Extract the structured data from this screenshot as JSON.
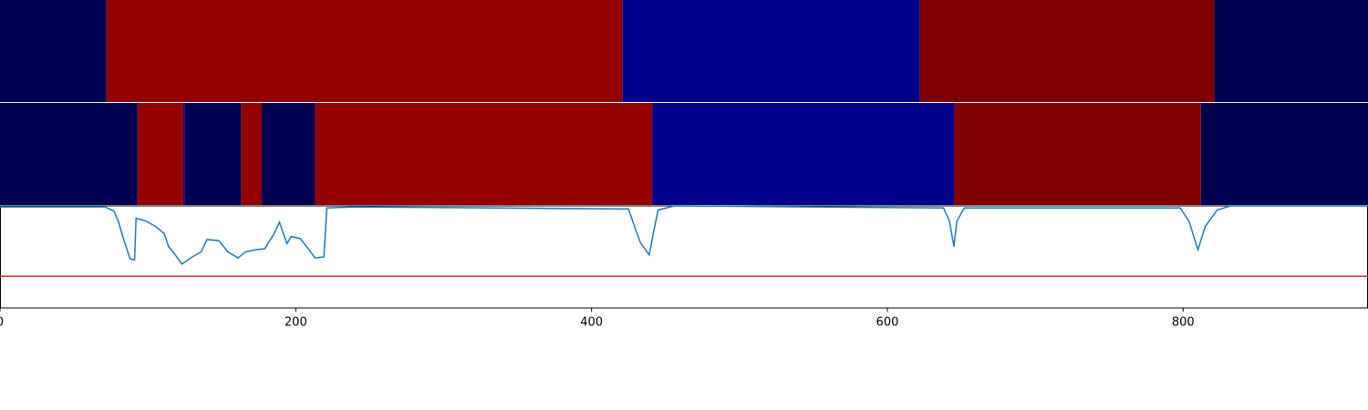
{
  "chart_data": {
    "type": "line",
    "xlim": [
      0,
      925
    ],
    "xticks": [
      0,
      200,
      400,
      600,
      800
    ],
    "ylim": [
      0,
      1
    ],
    "tracks": [
      {
        "segments": [
          {
            "start": 0,
            "end": 72,
            "color": "#000050"
          },
          {
            "start": 72,
            "end": 421,
            "color": "#920000"
          },
          {
            "start": 421,
            "end": 622,
            "color": "#00008a"
          },
          {
            "start": 622,
            "end": 821,
            "color": "#7f0000"
          },
          {
            "start": 821,
            "end": 925,
            "color": "#000050"
          }
        ]
      },
      {
        "segments": [
          {
            "start": 0,
            "end": 93,
            "color": "#000050"
          },
          {
            "start": 93,
            "end": 124,
            "color": "#920000"
          },
          {
            "start": 124,
            "end": 125,
            "color": "#00008a"
          },
          {
            "start": 125,
            "end": 163,
            "color": "#000050"
          },
          {
            "start": 163,
            "end": 177,
            "color": "#920000"
          },
          {
            "start": 177,
            "end": 213,
            "color": "#000050"
          },
          {
            "start": 213,
            "end": 441,
            "color": "#920000"
          },
          {
            "start": 441,
            "end": 645,
            "color": "#00008a"
          },
          {
            "start": 645,
            "end": 812,
            "color": "#7f0000"
          },
          {
            "start": 812,
            "end": 925,
            "color": "#000050"
          }
        ]
      }
    ],
    "series": [
      {
        "color": "#1f77b4",
        "x": [
          0,
          35,
          71,
          77,
          80,
          83,
          88,
          91,
          92,
          99,
          105,
          111,
          114,
          117,
          123,
          130,
          136,
          140,
          148,
          154,
          161,
          166,
          173,
          179,
          185,
          189,
          194,
          197,
          203,
          209,
          213,
          219,
          221,
          240,
          425,
          429,
          433,
          439,
          442,
          445,
          456,
          638,
          642,
          645,
          647,
          652,
          798,
          804,
          810,
          815,
          823,
          832,
          925
        ],
        "values": [
          0.99,
          0.99,
          0.99,
          0.95,
          0.85,
          0.7,
          0.48,
          0.47,
          0.88,
          0.85,
          0.8,
          0.73,
          0.6,
          0.55,
          0.43,
          0.5,
          0.55,
          0.67,
          0.66,
          0.55,
          0.49,
          0.55,
          0.57,
          0.58,
          0.72,
          0.84,
          0.63,
          0.7,
          0.68,
          0.57,
          0.49,
          0.5,
          0.98,
          0.99,
          0.97,
          0.8,
          0.64,
          0.52,
          0.75,
          0.96,
          1.0,
          0.98,
          0.85,
          0.6,
          0.85,
          0.98,
          0.98,
          0.85,
          0.57,
          0.8,
          0.96,
          1.0,
          1.0
        ]
      }
    ],
    "threshold": {
      "value": 0.31,
      "color": "#d62728"
    }
  }
}
